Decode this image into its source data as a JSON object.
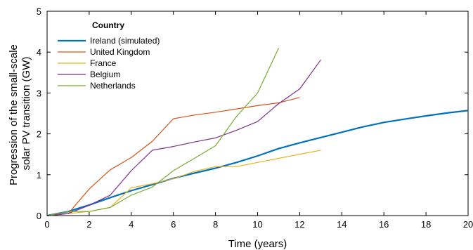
{
  "chart_data": {
    "type": "line",
    "xlabel": "Time (years)",
    "ylabel_lines": [
      "Progression of the small-scale",
      "solar PV transition (GW)"
    ],
    "xlim": [
      0,
      20
    ],
    "ylim": [
      0,
      5
    ],
    "xticks": [
      "0",
      "2",
      "4",
      "6",
      "8",
      "10",
      "12",
      "14",
      "16",
      "18",
      "20"
    ],
    "yticks": [
      "0",
      "1",
      "2",
      "3",
      "4",
      "5"
    ],
    "grid": false,
    "legend": {
      "title": "Country",
      "position": "top-left"
    },
    "series": [
      {
        "name": "Ireland (simulated)",
        "color": "#0072BD",
        "width": 2.2,
        "x": [
          0,
          1,
          2,
          3,
          4,
          5,
          6,
          7,
          8,
          9,
          10,
          11,
          12,
          13,
          14,
          15,
          16,
          17,
          18,
          19,
          20
        ],
        "y": [
          0,
          0.1,
          0.26,
          0.44,
          0.61,
          0.76,
          0.91,
          1.04,
          1.16,
          1.3,
          1.46,
          1.64,
          1.78,
          1.91,
          2.04,
          2.17,
          2.28,
          2.36,
          2.44,
          2.51,
          2.57
        ]
      },
      {
        "name": "United Kingdom",
        "color": "#D95319",
        "width": 1.2,
        "x": [
          0,
          1,
          2,
          3,
          4,
          5,
          6,
          7,
          8,
          9,
          10,
          11,
          12
        ],
        "y": [
          0,
          0.05,
          0.65,
          1.12,
          1.42,
          1.82,
          2.37,
          2.46,
          2.53,
          2.61,
          2.69,
          2.76,
          2.89
        ]
      },
      {
        "name": "France",
        "color": "#EDB120",
        "width": 1.2,
        "x": [
          0,
          1,
          2,
          3,
          4,
          5,
          6,
          7,
          8,
          9,
          10,
          11,
          12,
          13
        ],
        "y": [
          0,
          0.05,
          0.1,
          0.2,
          0.68,
          0.78,
          0.9,
          1.08,
          1.2,
          1.2,
          1.3,
          1.4,
          1.5,
          1.6
        ]
      },
      {
        "name": "Belgium",
        "color": "#7E2F8E",
        "width": 1.2,
        "x": [
          0,
          1,
          2,
          3,
          4,
          5,
          6,
          7,
          8,
          9,
          10,
          11,
          12,
          13
        ],
        "y": [
          0,
          0.05,
          0.25,
          0.5,
          1.1,
          1.6,
          1.69,
          1.8,
          1.9,
          2.09,
          2.3,
          2.74,
          3.1,
          3.81
        ]
      },
      {
        "name": "Netherlands",
        "color": "#77AC30",
        "width": 1.2,
        "x": [
          0,
          1,
          2,
          3,
          4,
          5,
          6,
          7,
          8,
          9,
          10,
          11
        ],
        "y": [
          0,
          0.1,
          0.1,
          0.2,
          0.5,
          0.7,
          1.1,
          1.4,
          1.71,
          2.43,
          3.0,
          4.1
        ]
      }
    ]
  }
}
